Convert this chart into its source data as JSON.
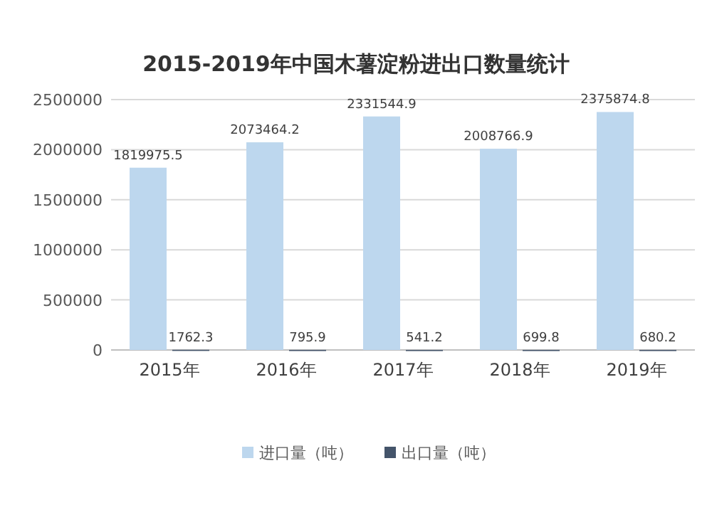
{
  "chart_data": {
    "type": "bar",
    "title": "2015-2019年中国木薯淀粉进出口数量统计",
    "categories": [
      "2015年",
      "2016年",
      "2017年",
      "2018年",
      "2019年"
    ],
    "series": [
      {
        "name": "进口量（吨）",
        "color": "#bdd7ee",
        "values": [
          1819975.5,
          2073464.2,
          2331544.9,
          2008766.9,
          2375874.8
        ]
      },
      {
        "name": "出口量（吨）",
        "color": "#44546a",
        "values": [
          1762.3,
          795.9,
          541.2,
          699.8,
          680.2
        ]
      }
    ],
    "ylim": [
      0,
      2500000
    ],
    "yticks": [
      0,
      500000,
      1000000,
      1500000,
      2000000,
      2500000
    ],
    "grid": "y",
    "legend": "bottom",
    "data_labels": true
  }
}
